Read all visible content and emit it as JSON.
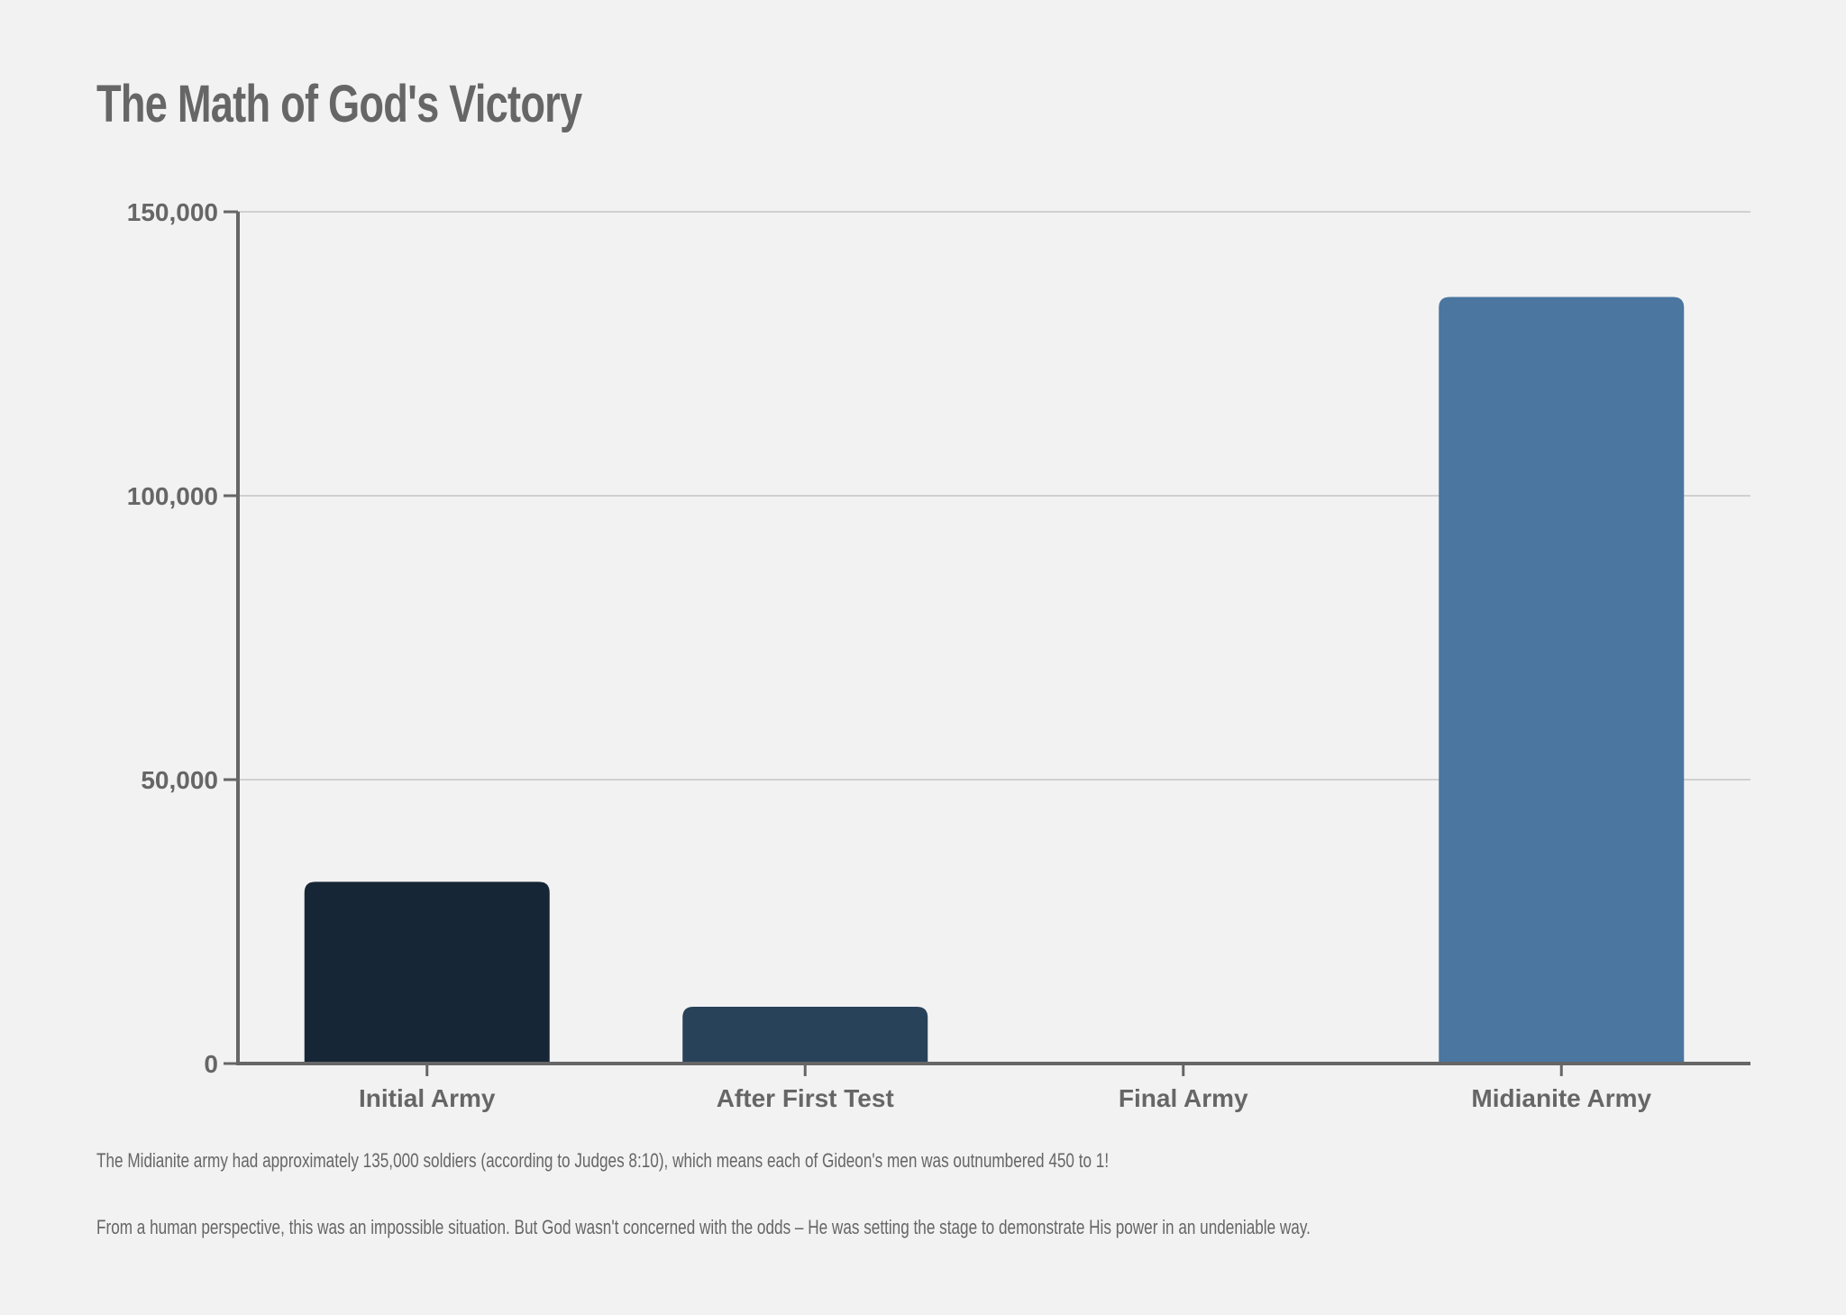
{
  "chart_data": {
    "type": "bar",
    "title": "The Math of God's Victory",
    "categories": [
      "Initial Army",
      "After First Test",
      "Final Army",
      "Midianite Army"
    ],
    "values": [
      32000,
      10000,
      300,
      135000
    ],
    "colors": [
      "#172636",
      "#284259",
      "#3a5c7d",
      "#4a76a0"
    ],
    "ylim": [
      0,
      150000
    ],
    "yticks": [
      0,
      50000,
      100000,
      150000
    ],
    "ytick_labels": [
      "0",
      "50,000",
      "100,000",
      "150,000"
    ],
    "xlabel": "",
    "ylabel": "",
    "grid": true
  },
  "notes": {
    "line1": "The Midianite army had approximately 135,000 soldiers (according to Judges 8:10), which means each of Gideon's men was outnumbered 450 to 1!",
    "line2": "From a human perspective, this was an impossible situation. But God wasn't concerned with the odds – He was setting the stage to demonstrate His power in an undeniable way."
  }
}
